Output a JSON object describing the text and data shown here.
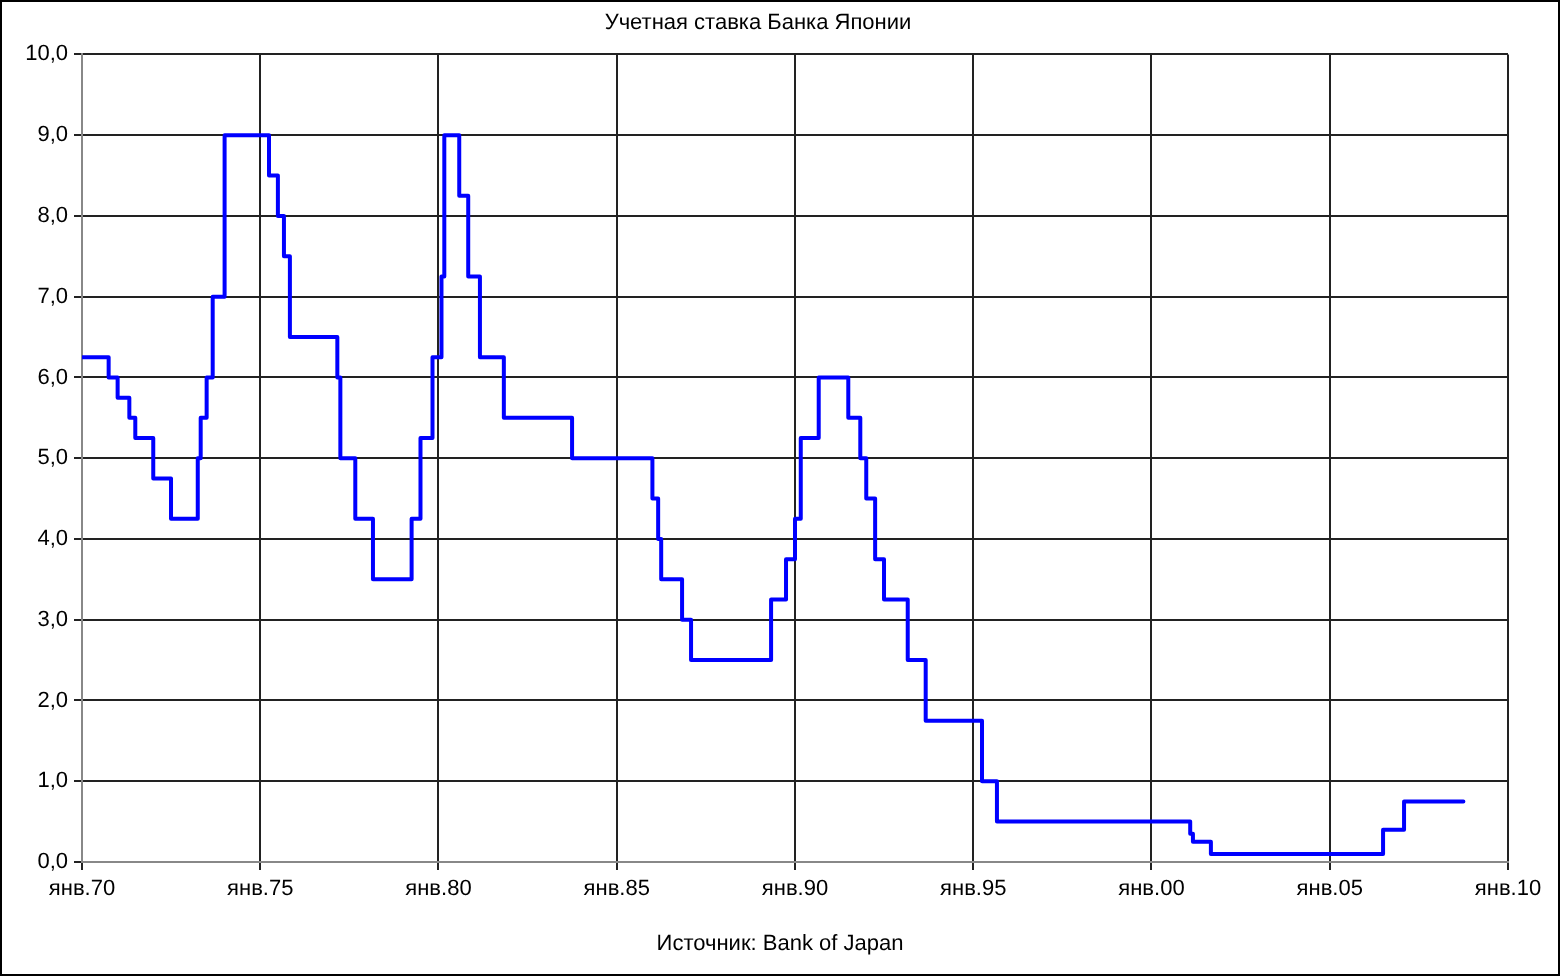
{
  "chart_data": {
    "type": "step",
    "title": "Учетная ставка Банка Японии",
    "annotations": [
      "Источник: Bank of Japan"
    ],
    "x": [
      "1970-01",
      "1970-10",
      "1971-01",
      "1971-05",
      "1971-07",
      "1972-01",
      "1972-07",
      "1973-04",
      "1973-05",
      "1973-07",
      "1973-09",
      "1974-01",
      "1975-04",
      "1975-07",
      "1975-09",
      "1975-11",
      "1977-03",
      "1977-04",
      "1977-09",
      "1978-03",
      "1979-04",
      "1979-07",
      "1979-11",
      "1980-02",
      "1980-03",
      "1980-08",
      "1980-11",
      "1981-03",
      "1981-11",
      "1983-10",
      "1986-01",
      "1986-03",
      "1986-04",
      "1986-11",
      "1987-02",
      "1989-05",
      "1989-10",
      "1990-01",
      "1990-03",
      "1990-09",
      "1991-07",
      "1991-11",
      "1992-01",
      "1992-04",
      "1992-07",
      "1993-03",
      "1993-09",
      "1995-04",
      "1995-09",
      "2001-02",
      "2001-03",
      "2001-09",
      "2006-07",
      "2007-02",
      "2008-10"
    ],
    "series": [
      {
        "color": "#0000ff",
        "values": [
          6.25,
          6.0,
          5.75,
          5.5,
          5.25,
          4.75,
          4.25,
          5.0,
          5.5,
          6.0,
          7.0,
          9.0,
          8.5,
          8.0,
          7.5,
          6.5,
          6.0,
          5.0,
          4.25,
          3.5,
          4.25,
          5.25,
          6.25,
          7.25,
          9.0,
          8.25,
          7.25,
          6.25,
          5.5,
          5.0,
          4.5,
          4.0,
          3.5,
          3.0,
          2.5,
          3.25,
          3.75,
          4.25,
          5.25,
          6.0,
          5.5,
          5.0,
          4.5,
          3.75,
          3.25,
          2.5,
          1.75,
          1.0,
          0.5,
          0.35,
          0.25,
          0.1,
          0.4,
          0.75,
          0.75
        ]
      }
    ],
    "xlim": [
      "1970-01",
      "2010-01"
    ],
    "xticks": [
      {
        "value": "1970-01",
        "label": "янв.70"
      },
      {
        "value": "1975-01",
        "label": "янв.75"
      },
      {
        "value": "1980-01",
        "label": "янв.80"
      },
      {
        "value": "1985-01",
        "label": "янв.85"
      },
      {
        "value": "1990-01",
        "label": "янв.90"
      },
      {
        "value": "1995-01",
        "label": "янв.95"
      },
      {
        "value": "2000-01",
        "label": "янв.00"
      },
      {
        "value": "2005-01",
        "label": "янв.05"
      },
      {
        "value": "2010-01",
        "label": "янв.10"
      }
    ],
    "ylim": [
      0,
      10
    ],
    "yticks": [
      {
        "value": 0,
        "label": "0,0"
      },
      {
        "value": 1,
        "label": "1,0"
      },
      {
        "value": 2,
        "label": "2,0"
      },
      {
        "value": 3,
        "label": "3,0"
      },
      {
        "value": 4,
        "label": "4,0"
      },
      {
        "value": 5,
        "label": "5,0"
      },
      {
        "value": 6,
        "label": "6,0"
      },
      {
        "value": 7,
        "label": "7,0"
      },
      {
        "value": 8,
        "label": "8,0"
      },
      {
        "value": 9,
        "label": "9,0"
      },
      {
        "value": 10,
        "label": "10,0"
      }
    ],
    "grid": true,
    "legend": false,
    "marker": "none",
    "line_style": "solid"
  }
}
